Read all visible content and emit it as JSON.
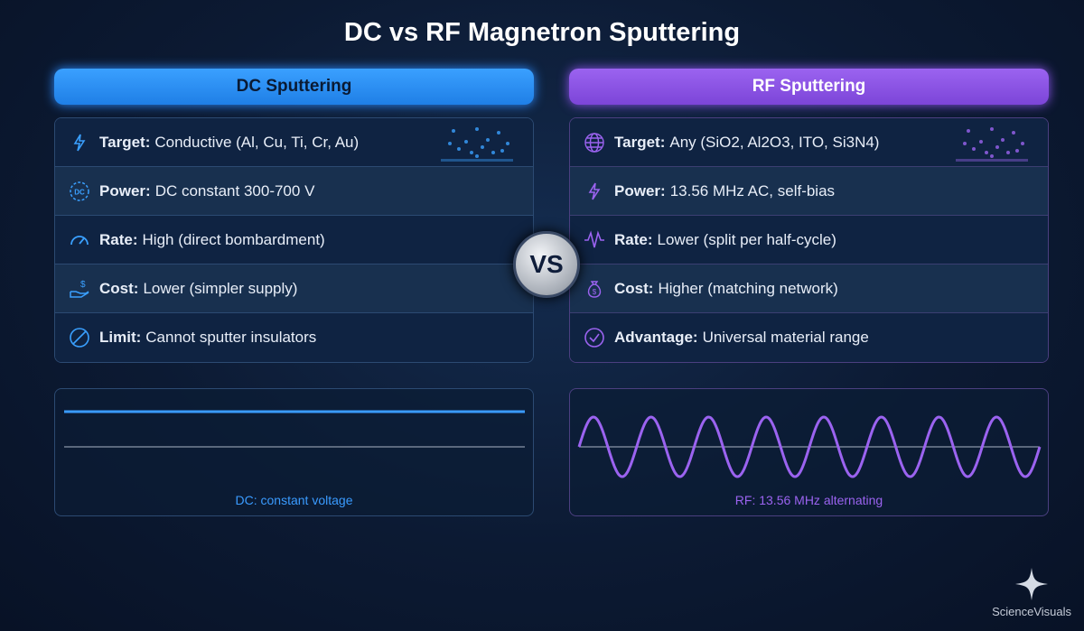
{
  "title": "DC vs RF Magnetron Sputtering",
  "dc": {
    "header": "DC Sputtering",
    "color": "#3aa0ff",
    "rows": [
      {
        "icon": "lightning-icon",
        "label": "Target:",
        "value": "Conductive (Al, Cu, Ti, Cr, Au)"
      },
      {
        "icon": "dc-icon",
        "label": "Power:",
        "value": "DC constant 300-700 V"
      },
      {
        "icon": "gauge-icon",
        "label": "Rate:",
        "value": "High (direct bombardment)"
      },
      {
        "icon": "hand-dollar-icon",
        "label": "Cost:",
        "value": "Lower (simpler supply)"
      },
      {
        "icon": "prohibited-icon",
        "label": "Limit:",
        "value": "Cannot sputter insulators"
      }
    ],
    "caption": "DC: constant voltage"
  },
  "rf": {
    "header": "RF Sputtering",
    "color": "#9b63f0",
    "rows": [
      {
        "icon": "globe-icon",
        "label": "Target:",
        "value": "Any (SiO2, Al2O3, ITO, Si3N4)"
      },
      {
        "icon": "lightning-icon",
        "label": "Power:",
        "value": "13.56 MHz AC, self-bias"
      },
      {
        "icon": "wave-icon",
        "label": "Rate:",
        "value": "Lower (split per half-cycle)"
      },
      {
        "icon": "money-bag-icon",
        "label": "Cost:",
        "value": "Higher (matching network)"
      },
      {
        "icon": "check-circle-icon",
        "label": "Advantage:",
        "value": "Universal material range"
      }
    ],
    "caption": "RF: 13.56 MHz alternating"
  },
  "vs": "VS",
  "watermark": "ScienceVisuals"
}
